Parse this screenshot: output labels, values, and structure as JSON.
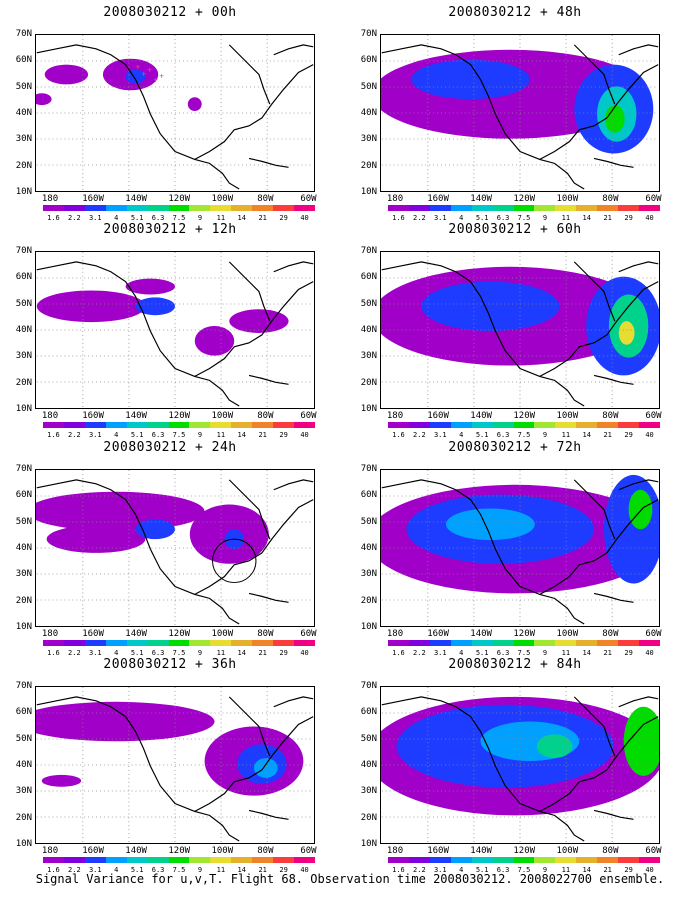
{
  "panels": [
    {
      "title": "2008030212 + 00h"
    },
    {
      "title": "2008030212 + 12h"
    },
    {
      "title": "2008030212 + 24h"
    },
    {
      "title": "2008030212 + 36h"
    },
    {
      "title": "2008030212 + 48h"
    },
    {
      "title": "2008030212 + 60h"
    },
    {
      "title": "2008030212 + 72h"
    },
    {
      "title": "2008030212 + 84h"
    }
  ],
  "lat_labels": [
    "70N",
    "60N",
    "50N",
    "40N",
    "30N",
    "20N",
    "10N"
  ],
  "lon_labels": [
    "180",
    "160W",
    "140W",
    "120W",
    "100W",
    "80W",
    "60W"
  ],
  "colorbar": {
    "labels": [
      "1.6",
      "2.2",
      "3.1",
      "4",
      "5.1",
      "6.3",
      "7.5",
      "9",
      "11",
      "14",
      "21",
      "29",
      "40"
    ],
    "colors": [
      "#a000c8",
      "#8200dc",
      "#1e3cff",
      "#00a0ff",
      "#00c8c8",
      "#00d28c",
      "#00dc00",
      "#a0e632",
      "#e6dc32",
      "#e6af2d",
      "#f08228",
      "#fa3c3c",
      "#f00082"
    ]
  },
  "caption": "Signal Variance for u,v,T. Flight 68. Observation time 2008030212. 2008022700 ensemble."
}
